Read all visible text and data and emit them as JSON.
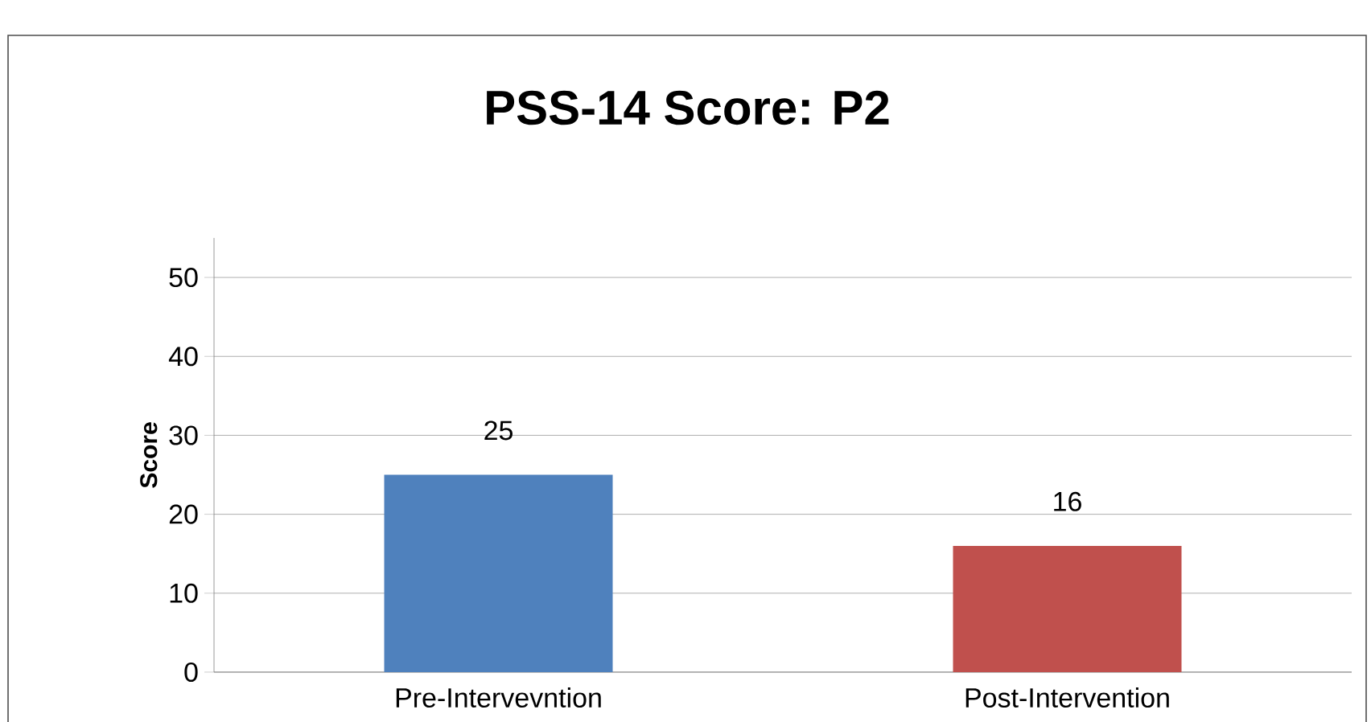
{
  "chart_data": {
    "type": "bar",
    "title": "PSS-14 Score: P2",
    "ylabel": "Score",
    "categories": [
      "Pre-Intervevntion",
      "Post-Intervention"
    ],
    "values": [
      25,
      16
    ],
    "colors": [
      "#4f81bd",
      "#c0504d"
    ],
    "ylim": [
      0,
      55
    ],
    "yticks": [
      0,
      10,
      20,
      30,
      40,
      50
    ],
    "grid": "y",
    "data_labels": true
  }
}
